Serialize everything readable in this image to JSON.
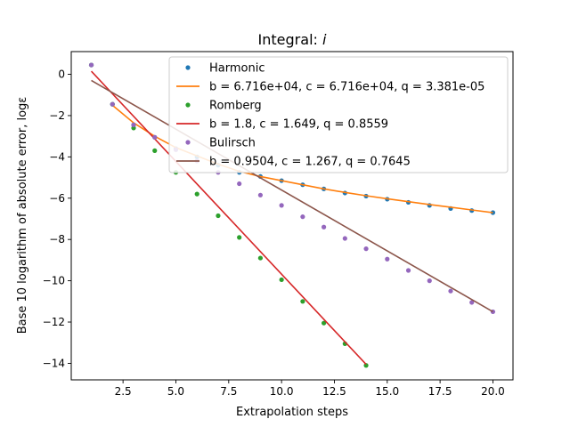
{
  "chart_data": {
    "type": "scatter",
    "title_prefix": "Integral: ",
    "title_var": "i",
    "xlabel": "Extrapolation steps",
    "ylabel": "Base 10 logarithm of absolute error, logε",
    "xlim": [
      0.05,
      20.95
    ],
    "ylim": [
      -14.8,
      1.1
    ],
    "xticks": [
      2.5,
      5.0,
      7.5,
      10.0,
      12.5,
      15.0,
      17.5,
      20.0
    ],
    "xtick_labels": [
      "2.5",
      "5.0",
      "7.5",
      "10.0",
      "12.5",
      "15.0",
      "17.5",
      "20.0"
    ],
    "yticks": [
      0,
      -2,
      -4,
      -6,
      -8,
      -10,
      -12,
      -14
    ],
    "ytick_labels": [
      "0",
      "−2",
      "−4",
      "−6",
      "−8",
      "−10",
      "−12",
      "−14"
    ],
    "grid": false,
    "legend_position": "top-right",
    "series": [
      {
        "name": "Harmonic",
        "kind": "points",
        "color": "#1f77b4",
        "x": [
          1,
          2,
          3,
          4,
          5,
          6,
          7,
          8,
          9,
          10,
          11,
          12,
          13,
          14,
          15,
          16,
          17,
          18,
          19,
          20
        ],
        "y": [
          0.45,
          -1.45,
          -2.45,
          -3.05,
          -3.6,
          -4.0,
          -4.4,
          -4.75,
          -4.95,
          -5.15,
          -5.35,
          -5.55,
          -5.75,
          -5.9,
          -6.05,
          -6.2,
          -6.35,
          -6.5,
          -6.6,
          -6.7
        ]
      },
      {
        "name": "b = 6.716e+04, c = 6.716e+04, q = 3.381e-05",
        "kind": "line",
        "color": "#ff7f0e",
        "x": [
          2,
          3,
          4,
          5,
          6,
          7,
          8,
          9,
          10,
          11,
          12,
          13,
          14,
          15,
          16,
          17,
          18,
          19,
          20
        ],
        "y": [
          -1.5,
          -2.35,
          -3.0,
          -3.55,
          -3.95,
          -4.35,
          -4.7,
          -4.95,
          -5.15,
          -5.35,
          -5.55,
          -5.72,
          -5.88,
          -6.03,
          -6.17,
          -6.31,
          -6.44,
          -6.57,
          -6.7
        ]
      },
      {
        "name": "Romberg",
        "kind": "points",
        "color": "#2ca02c",
        "x": [
          1,
          2,
          3,
          4,
          5,
          6,
          7,
          8,
          9,
          10,
          11,
          12,
          13,
          14
        ],
        "y": [
          0.45,
          -1.45,
          -2.6,
          -3.7,
          -4.75,
          -5.8,
          -6.85,
          -7.9,
          -8.9,
          -9.95,
          -11.0,
          -12.05,
          -13.05,
          -14.1
        ]
      },
      {
        "name": "b = 1.8, c = 1.649, q = 0.8559",
        "kind": "line",
        "color": "#d62728",
        "x": [
          1,
          14
        ],
        "y": [
          0.15,
          -14.05
        ]
      },
      {
        "name": "Bulirsch",
        "kind": "points",
        "color": "#9467bd",
        "x": [
          1,
          2,
          3,
          4,
          5,
          6,
          7,
          8,
          9,
          10,
          11,
          12,
          13,
          14,
          15,
          16,
          17,
          18,
          19,
          20
        ],
        "y": [
          0.45,
          -1.45,
          -2.45,
          -3.05,
          -3.65,
          -4.2,
          -4.75,
          -5.3,
          -5.85,
          -6.35,
          -6.9,
          -7.4,
          -7.95,
          -8.45,
          -8.95,
          -9.5,
          -10.0,
          -10.5,
          -11.05,
          -11.5
        ]
      },
      {
        "name": "b = 0.9504, c = 1.267, q = 0.7645",
        "kind": "line",
        "color": "#8c564b",
        "x": [
          1,
          20
        ],
        "y": [
          -0.3,
          -11.5
        ]
      }
    ]
  }
}
